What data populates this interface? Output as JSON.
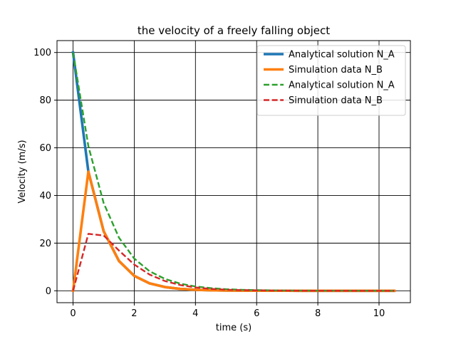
{
  "chart_data": {
    "type": "line",
    "title": "the velocity of a freely falling object",
    "xlabel": "time (s)",
    "ylabel": "Velocity (m/s)",
    "xlim": [
      -0.525,
      11.025
    ],
    "ylim": [
      -5,
      105
    ],
    "xticks": [
      0,
      2,
      4,
      6,
      8,
      10
    ],
    "yticks": [
      0,
      20,
      40,
      60,
      80,
      100
    ],
    "grid": true,
    "legend_position": "top-right",
    "series": [
      {
        "name": "Analytical solution N_A",
        "style": "solid",
        "color": "#1f77b4",
        "x": [
          0,
          0.5,
          1.0,
          1.5,
          2.0,
          2.5,
          3.0,
          3.5,
          4.0,
          4.5,
          5.0,
          5.5,
          6.0,
          6.5,
          7.0,
          7.5,
          8.0,
          8.5,
          9.0,
          9.5,
          10.0,
          10.5
        ],
        "y": [
          100,
          50,
          25,
          12.5,
          6.25,
          3.125,
          1.5625,
          0.78,
          0.39,
          0.2,
          0.1,
          0.05,
          0.02,
          0.01,
          0.01,
          0,
          0,
          0,
          0,
          0,
          0,
          0
        ]
      },
      {
        "name": "Simulation data N_B",
        "style": "solid",
        "color": "#ff7f0e",
        "x": [
          0,
          0.5,
          1.0,
          1.5,
          2.0,
          2.5,
          3.0,
          3.5,
          4.0,
          4.5,
          5.0,
          5.5,
          6.0,
          6.5,
          7.0,
          7.5,
          8.0,
          8.5,
          9.0,
          9.5,
          10.0,
          10.5
        ],
        "y": [
          0,
          50,
          25,
          12.5,
          6.25,
          3.125,
          1.5625,
          0.78,
          0.39,
          0.2,
          0.1,
          0.05,
          0.02,
          0.01,
          0.01,
          0,
          0,
          0,
          0,
          0,
          0,
          0
        ]
      },
      {
        "name": "Analytical solution N_A",
        "style": "dashed",
        "color": "#2ca02c",
        "x": [
          0,
          0.5,
          1.0,
          1.5,
          2.0,
          2.5,
          3.0,
          3.5,
          4.0,
          4.5,
          5.0,
          5.5,
          6.0,
          6.5,
          7.0,
          7.5,
          8.0,
          8.5,
          9.0,
          9.5,
          10.0,
          10.5
        ],
        "y": [
          100,
          60.7,
          36.8,
          22.3,
          13.5,
          8.2,
          5.0,
          3.0,
          1.8,
          1.1,
          0.67,
          0.41,
          0.25,
          0.15,
          0.09,
          0.06,
          0.03,
          0.02,
          0.01,
          0.01,
          0,
          0
        ]
      },
      {
        "name": "Simulation data N_B",
        "style": "dashed",
        "color": "#d62728",
        "x": [
          0,
          0.5,
          1.0,
          1.5,
          2.0,
          2.5,
          3.0,
          3.5,
          4.0,
          4.5,
          5.0,
          5.5,
          6.0,
          6.5,
          7.0,
          7.5,
          8.0,
          8.5,
          9.0,
          9.5,
          10.0,
          10.5
        ],
        "y": [
          0,
          23.9,
          23.2,
          16.9,
          11.0,
          6.8,
          4.1,
          2.4,
          1.4,
          0.8,
          0.46,
          0.26,
          0.15,
          0.08,
          0.05,
          0.03,
          0.02,
          0.01,
          0,
          0,
          0,
          0
        ]
      }
    ]
  }
}
